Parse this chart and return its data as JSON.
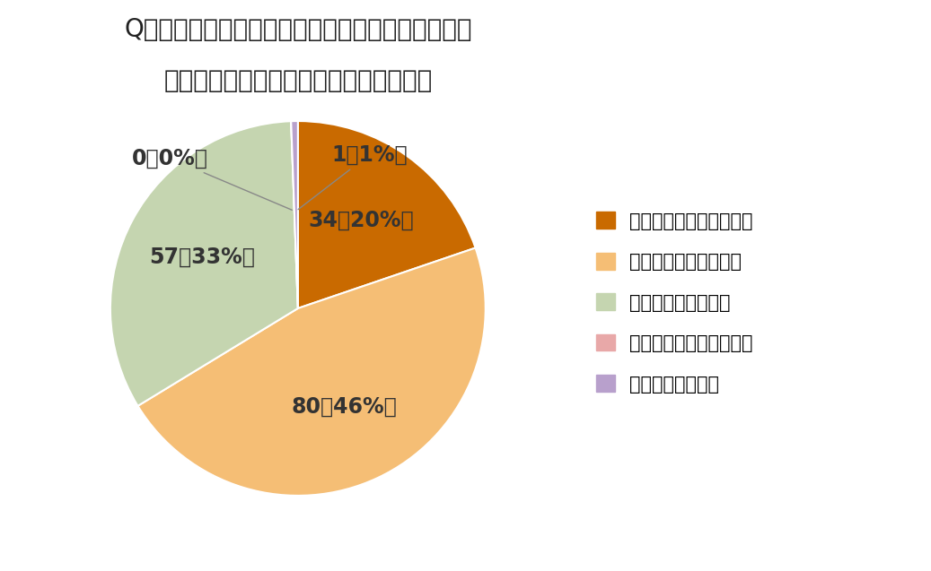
{
  "title_line1": "Q．企業や給食事業者など、学校関係者以外からの",
  "title_line2": "食育を取り入れてみたいと思いますか。",
  "slices": [
    34,
    80,
    57,
    0,
    1
  ],
  "labels_inside": [
    "34（20%）",
    "80（46%）",
    "57（33%）",
    "",
    ""
  ],
  "labels_outside_small": [
    {
      "text": "0（0%）",
      "idx": 3
    },
    {
      "text": "1（1%）",
      "idx": 4
    }
  ],
  "colors": [
    "#C96A00",
    "#F5BE75",
    "#C5D5B0",
    "#E8A8A8",
    "#B8A0CC"
  ],
  "legend_labels": [
    "すごく取り入れてみたい",
    "やや取り入れてみたい",
    "どちらともいえない",
    "あまり取り入れたくない",
    "取り入れたくない"
  ],
  "background_color": "#FFFFFF",
  "text_color": "#333333",
  "label_color": "#333333",
  "title_fontsize": 20,
  "label_fontsize": 17,
  "legend_fontsize": 15
}
